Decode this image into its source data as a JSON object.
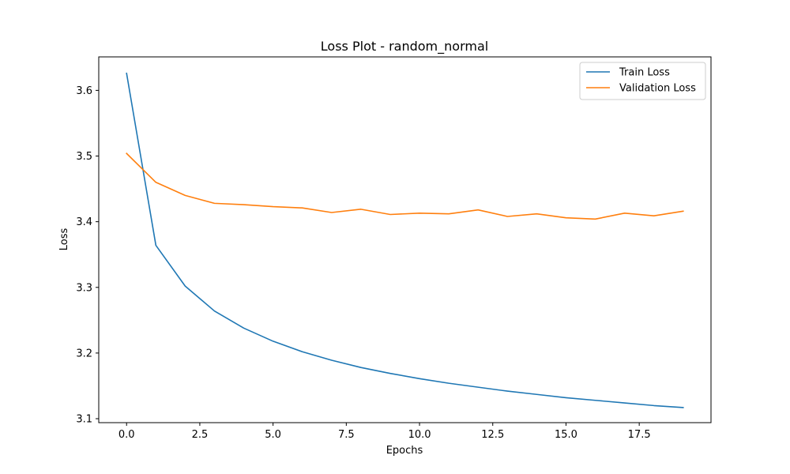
{
  "chart_data": {
    "type": "line",
    "title": "Loss Plot - random_normal",
    "xlabel": "Epochs",
    "ylabel": "Loss",
    "xlim": [
      -0.95,
      19.95
    ],
    "ylim": [
      3.094,
      3.651
    ],
    "x_ticks": [
      0.0,
      2.5,
      5.0,
      7.5,
      10.0,
      12.5,
      15.0,
      17.5
    ],
    "x_tick_labels": [
      "0.0",
      "2.5",
      "5.0",
      "7.5",
      "10.0",
      "12.5",
      "15.0",
      "17.5"
    ],
    "y_ticks": [
      3.1,
      3.2,
      3.3,
      3.4,
      3.5,
      3.6
    ],
    "y_tick_labels": [
      "3.1",
      "3.2",
      "3.3",
      "3.4",
      "3.5",
      "3.6"
    ],
    "grid": false,
    "legend_position": "top-right",
    "x": [
      0,
      1,
      2,
      3,
      4,
      5,
      6,
      7,
      8,
      9,
      10,
      11,
      12,
      13,
      14,
      15,
      16,
      17,
      18,
      19
    ],
    "series": [
      {
        "name": "Train Loss",
        "color": "#1f77b4",
        "values": [
          3.626,
          3.364,
          3.302,
          3.264,
          3.238,
          3.218,
          3.202,
          3.189,
          3.178,
          3.169,
          3.161,
          3.154,
          3.148,
          3.142,
          3.137,
          3.132,
          3.128,
          3.124,
          3.12,
          3.117
        ]
      },
      {
        "name": "Validation Loss",
        "color": "#ff7f0e",
        "values": [
          3.504,
          3.46,
          3.44,
          3.428,
          3.426,
          3.423,
          3.421,
          3.414,
          3.419,
          3.411,
          3.413,
          3.412,
          3.418,
          3.408,
          3.412,
          3.406,
          3.404,
          3.413,
          3.409,
          3.416
        ]
      }
    ]
  }
}
